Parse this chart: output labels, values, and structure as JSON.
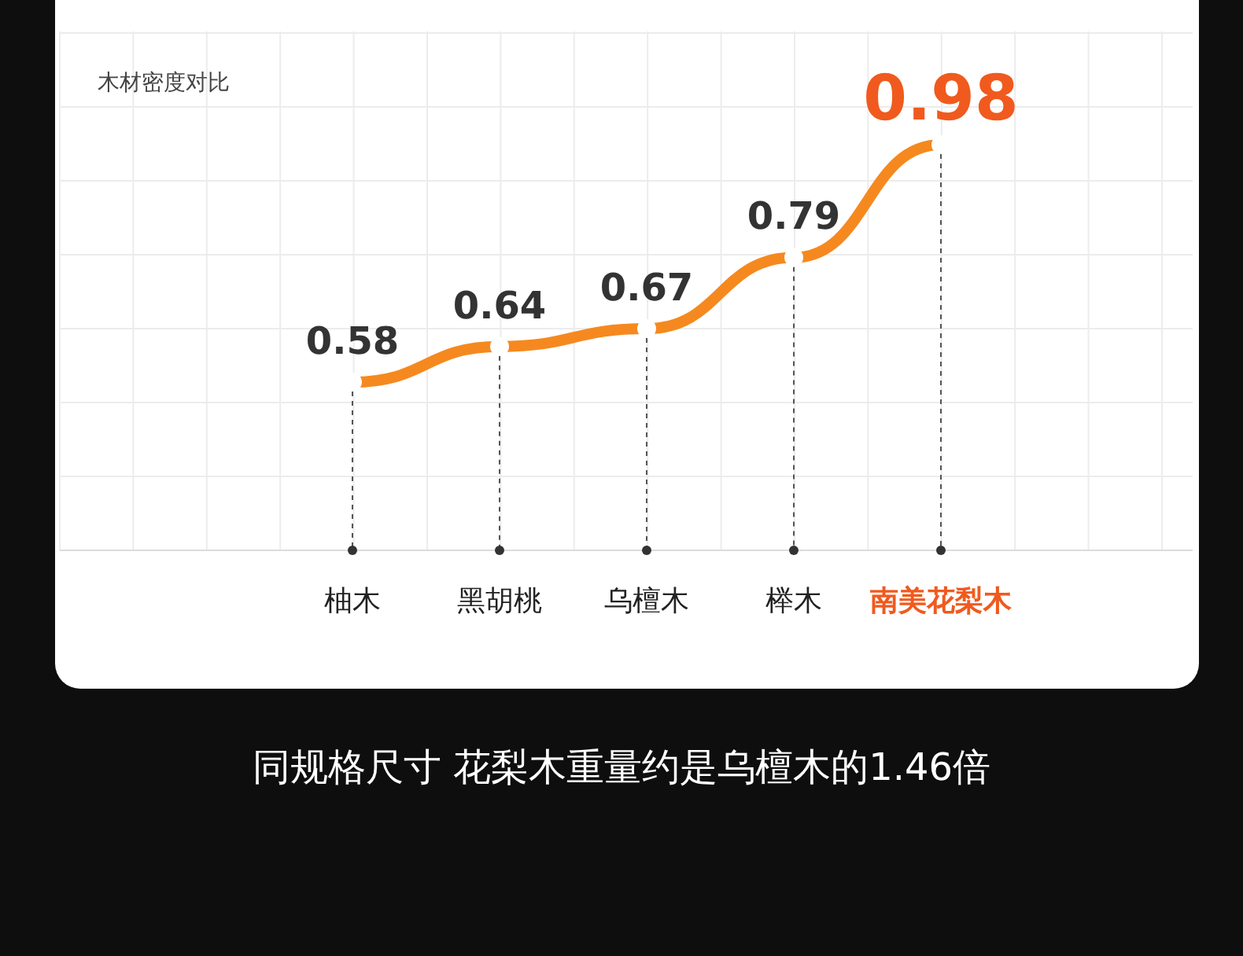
{
  "chart_data": {
    "type": "line",
    "title": "木材密度对比",
    "categories": [
      "柚木",
      "黑胡桃",
      "乌檀木",
      "榉木",
      "南美花梨木"
    ],
    "values": [
      0.58,
      0.64,
      0.67,
      0.79,
      0.98
    ],
    "color": "#f5891f",
    "data_labels": true,
    "marker": "circle",
    "grid": true,
    "annotations": [
      "同规格尺寸 花梨木重量约是乌檀木的1.46倍"
    ]
  }
}
